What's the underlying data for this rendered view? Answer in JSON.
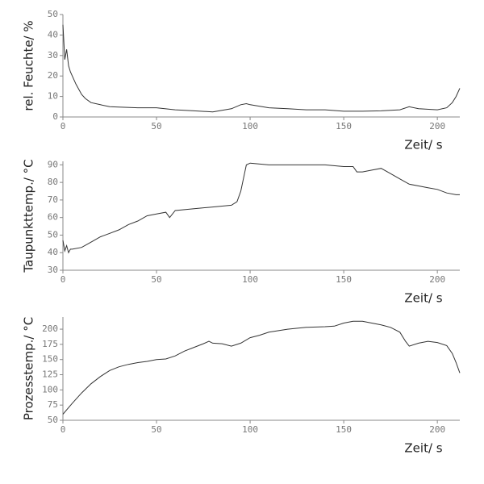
{
  "chart_data": [
    {
      "type": "line",
      "ylabel": "rel. Feuchte/ %",
      "xlabel": "Zeit/ s",
      "color": "#333333",
      "x": [
        0,
        1,
        2,
        3,
        4,
        5,
        7,
        10,
        12,
        15,
        20,
        25,
        30,
        40,
        50,
        60,
        70,
        80,
        90,
        95,
        98,
        100,
        110,
        120,
        130,
        140,
        150,
        160,
        170,
        180,
        185,
        190,
        200,
        205,
        208,
        210,
        212
      ],
      "values": [
        45,
        28,
        33,
        25,
        22,
        20,
        16,
        11,
        9,
        7,
        6,
        5,
        4.8,
        4.5,
        4.5,
        3.5,
        3,
        2.5,
        4,
        6,
        6.5,
        6,
        4.5,
        4,
        3.5,
        3.5,
        2.8,
        2.8,
        3,
        3.5,
        5,
        4,
        3.5,
        4.5,
        7,
        10,
        14
      ],
      "xlim": [
        0,
        212
      ],
      "xticks": [
        0,
        50,
        100,
        150,
        200
      ],
      "ylim": [
        0,
        50
      ],
      "yticks": [
        0,
        10,
        20,
        30,
        40,
        50
      ]
    },
    {
      "type": "line",
      "ylabel": "Taupunkttemp./ °C",
      "xlabel": "Zeit/ s",
      "color": "#333333",
      "x": [
        0,
        1,
        2,
        3,
        4,
        5,
        10,
        15,
        20,
        25,
        30,
        35,
        40,
        45,
        50,
        55,
        57,
        60,
        70,
        80,
        90,
        93,
        95,
        97,
        98,
        100,
        110,
        120,
        130,
        140,
        150,
        155,
        157,
        160,
        165,
        170,
        175,
        180,
        185,
        190,
        195,
        200,
        205,
        210,
        212
      ],
      "values": [
        47,
        41,
        44,
        40,
        42,
        42,
        43,
        46,
        49,
        51,
        53,
        56,
        58,
        61,
        62,
        63,
        60,
        64,
        65,
        66,
        67,
        69,
        75,
        85,
        90,
        91,
        90,
        90,
        90,
        90,
        89,
        89,
        86,
        86,
        87,
        88,
        85,
        82,
        79,
        78,
        77,
        76,
        74,
        73,
        73
      ],
      "xlim": [
        0,
        212
      ],
      "xticks": [
        0,
        50,
        100,
        150,
        200
      ],
      "ylim": [
        30,
        92
      ],
      "yticks": [
        30,
        40,
        50,
        60,
        70,
        80,
        90
      ]
    },
    {
      "type": "line",
      "ylabel": "Prozesstemp./ °C",
      "xlabel": "Zeit/ s",
      "color": "#333333",
      "x": [
        0,
        5,
        10,
        15,
        20,
        25,
        30,
        35,
        40,
        45,
        50,
        55,
        60,
        65,
        70,
        75,
        78,
        80,
        85,
        90,
        95,
        100,
        105,
        110,
        120,
        130,
        140,
        145,
        150,
        155,
        160,
        165,
        170,
        175,
        180,
        183,
        185,
        190,
        195,
        200,
        205,
        208,
        210,
        212
      ],
      "values": [
        60,
        78,
        95,
        110,
        122,
        132,
        138,
        142,
        145,
        147,
        150,
        151,
        156,
        164,
        170,
        176,
        180,
        177,
        176,
        172,
        177,
        186,
        190,
        195,
        200,
        203,
        204,
        205,
        210,
        213,
        213,
        210,
        207,
        203,
        195,
        180,
        172,
        177,
        180,
        178,
        173,
        160,
        145,
        128
      ],
      "xlim": [
        0,
        212
      ],
      "xticks": [
        0,
        50,
        100,
        150,
        200
      ],
      "ylim": [
        50,
        220
      ],
      "yticks": [
        50,
        75,
        100,
        125,
        150,
        175,
        200
      ]
    }
  ]
}
